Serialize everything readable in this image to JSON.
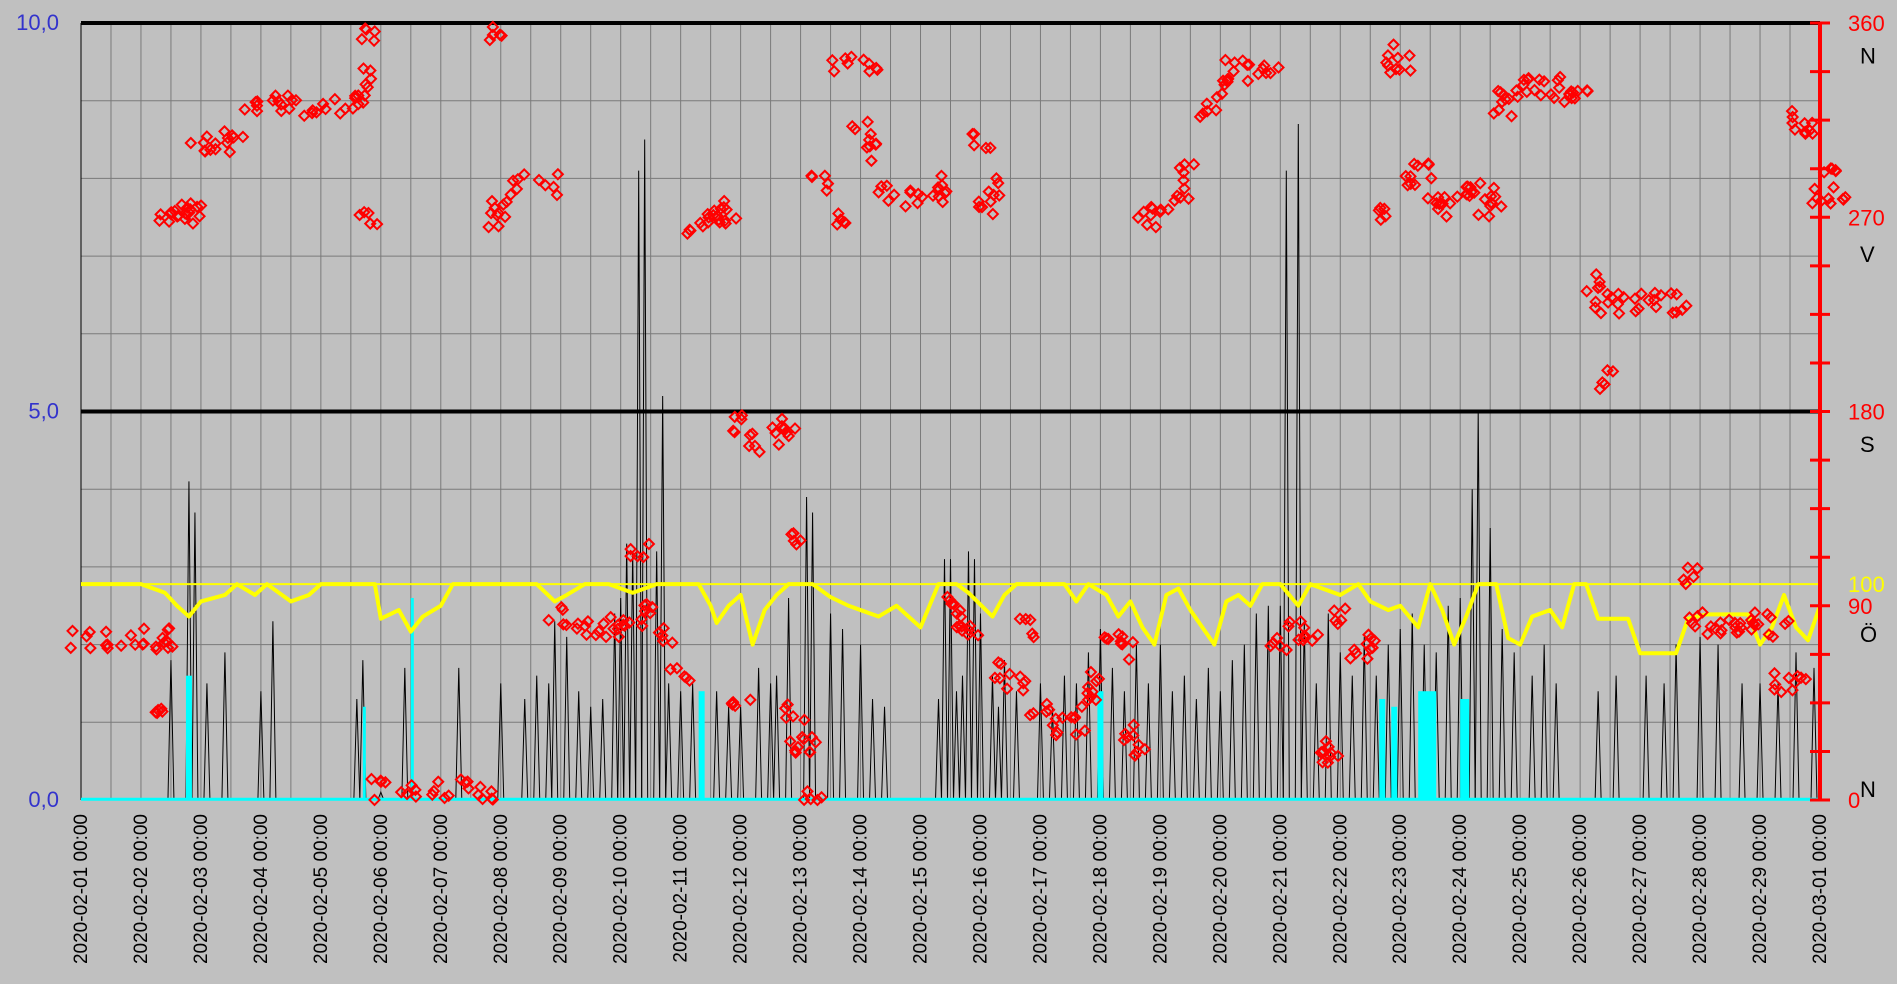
{
  "chart_data": {
    "type": "line",
    "title": "",
    "x": {
      "start": "2020-02-01",
      "end": "2020-03-01",
      "tick_labels": [
        "2020-02-01 00:00",
        "2020-02-02 00:00",
        "2020-02-03 00:00",
        "2020-02-04 00:00",
        "2020-02-05 00:00",
        "2020-02-06 00:00",
        "2020-02-07 00:00",
        "2020-02-08 00:00",
        "2020-02-09 00:00",
        "2020-02-10 00:00",
        "2020-02-11 00:00",
        "2020-02-12 00:00",
        "2020-02-13 00:00",
        "2020-02-14 00:00",
        "2020-02-15 00:00",
        "2020-02-16 00:00",
        "2020-02-17 00:00",
        "2020-02-18 00:00",
        "2020-02-19 00:00",
        "2020-02-20 00:00",
        "2020-02-21 00:00",
        "2020-02-22 00:00",
        "2020-02-23 00:00",
        "2020-02-24 00:00",
        "2020-02-25 00:00",
        "2020-02-26 00:00",
        "2020-02-27 00:00",
        "2020-02-28 00:00",
        "2020-02-29 00:00",
        "2020-03-01 00:00"
      ]
    },
    "y_left": {
      "ylim": [
        0,
        10
      ],
      "tick_labels": [
        "0,0",
        "5,0",
        "10,0"
      ],
      "tick_values": [
        0,
        5,
        10
      ],
      "color": "#3333cc"
    },
    "y_right": {
      "ylim": [
        0,
        360
      ],
      "tick_labels": [
        "0",
        "90",
        "180",
        "270",
        "360"
      ],
      "tick_values": [
        0,
        90,
        180,
        270,
        360
      ],
      "extra_label": {
        "value": 100,
        "text": "100"
      },
      "color": "#ff0000"
    },
    "compass_labels": [
      {
        "text": "N",
        "at": 345
      },
      {
        "text": "V",
        "at": 253
      },
      {
        "text": "S",
        "at": 165
      },
      {
        "text": "Ö",
        "at": 77
      },
      {
        "text": "N",
        "at": 5
      }
    ],
    "grid": true,
    "thick_horizontal_lines_left": [
      5,
      10
    ],
    "reference_line": {
      "value_right": 100,
      "color": "#ffff00"
    },
    "series": [
      {
        "type": "scatter",
        "marker": "diamond",
        "axis": "right",
        "color": "#ff0000",
        "points": [
          [
            0.0,
            75
          ],
          [
            0.5,
            75
          ],
          [
            0.9,
            75
          ],
          [
            1.3,
            75
          ],
          [
            1.35,
            73
          ],
          [
            1.4,
            40
          ],
          [
            1.45,
            272
          ],
          [
            1.6,
            275
          ],
          [
            1.8,
            270
          ],
          [
            1.9,
            275
          ],
          [
            2.0,
            305
          ],
          [
            2.3,
            305
          ],
          [
            2.6,
            305
          ],
          [
            2.8,
            322
          ],
          [
            3.2,
            322
          ],
          [
            3.6,
            322
          ],
          [
            4.0,
            322
          ],
          [
            4.4,
            322
          ],
          [
            4.6,
            325
          ],
          [
            4.7,
            335
          ],
          [
            4.75,
            355
          ],
          [
            4.8,
            270
          ],
          [
            5.0,
            5
          ],
          [
            5.5,
            5
          ],
          [
            6.0,
            5
          ],
          [
            6.5,
            5
          ],
          [
            6.8,
            5
          ],
          [
            6.9,
            355
          ],
          [
            6.95,
            270
          ],
          [
            7.0,
            275
          ],
          [
            7.3,
            285
          ],
          [
            7.8,
            285
          ],
          [
            7.95,
            85
          ],
          [
            8.3,
            80
          ],
          [
            8.7,
            80
          ],
          [
            9.0,
            80
          ],
          [
            9.2,
            80
          ],
          [
            9.3,
            115
          ],
          [
            9.5,
            90
          ],
          [
            9.8,
            75
          ],
          [
            10.0,
            60
          ],
          [
            10.2,
            265
          ],
          [
            10.4,
            270
          ],
          [
            10.6,
            275
          ],
          [
            10.8,
            270
          ],
          [
            11.0,
            45
          ],
          [
            11.05,
            175
          ],
          [
            11.3,
            165
          ],
          [
            11.6,
            168
          ],
          [
            11.75,
            172
          ],
          [
            11.9,
            40
          ],
          [
            11.95,
            120
          ],
          [
            12.0,
            25
          ],
          [
            12.1,
            25
          ],
          [
            12.2,
            0
          ],
          [
            12.3,
            285
          ],
          [
            12.6,
            270
          ],
          [
            12.7,
            340
          ],
          [
            13.0,
            310
          ],
          [
            13.1,
            300
          ],
          [
            13.2,
            340
          ],
          [
            13.4,
            280
          ],
          [
            13.8,
            280
          ],
          [
            14.2,
            280
          ],
          [
            14.4,
            285
          ],
          [
            14.6,
            90
          ],
          [
            14.7,
            85
          ],
          [
            14.8,
            80
          ],
          [
            15.0,
            305
          ],
          [
            15.1,
            275
          ],
          [
            15.2,
            285
          ],
          [
            15.4,
            60
          ],
          [
            15.6,
            55
          ],
          [
            15.8,
            80
          ],
          [
            16.0,
            40
          ],
          [
            16.3,
            35
          ],
          [
            16.6,
            35
          ],
          [
            16.8,
            45
          ],
          [
            16.9,
            55
          ],
          [
            17.2,
            75
          ],
          [
            17.4,
            70
          ],
          [
            17.5,
            30
          ],
          [
            17.6,
            25
          ],
          [
            17.8,
            270
          ],
          [
            18.0,
            275
          ],
          [
            18.3,
            280
          ],
          [
            18.5,
            290
          ],
          [
            18.8,
            320
          ],
          [
            19.0,
            330
          ],
          [
            19.2,
            338
          ],
          [
            19.5,
            338
          ],
          [
            19.8,
            338
          ],
          [
            20.0,
            72
          ],
          [
            20.3,
            78
          ],
          [
            20.5,
            75
          ],
          [
            20.7,
            25
          ],
          [
            20.8,
            22
          ],
          [
            21.0,
            85
          ],
          [
            21.3,
            70
          ],
          [
            21.5,
            75
          ],
          [
            21.6,
            270
          ],
          [
            21.8,
            345
          ],
          [
            22.0,
            340
          ],
          [
            22.2,
            285
          ],
          [
            22.4,
            290
          ],
          [
            22.6,
            275
          ],
          [
            22.8,
            275
          ],
          [
            23.0,
            280
          ],
          [
            23.2,
            285
          ],
          [
            23.4,
            275
          ],
          [
            23.6,
            280
          ],
          [
            23.7,
            320
          ],
          [
            23.8,
            325
          ],
          [
            24.0,
            330
          ],
          [
            24.3,
            330
          ],
          [
            24.6,
            330
          ],
          [
            24.8,
            325
          ],
          [
            25.0,
            325
          ],
          [
            25.2,
            240
          ],
          [
            25.3,
            230
          ],
          [
            25.4,
            195
          ],
          [
            25.6,
            230
          ],
          [
            26.0,
            230
          ],
          [
            26.4,
            230
          ],
          [
            26.7,
            230
          ],
          [
            26.8,
            105
          ],
          [
            26.9,
            85
          ],
          [
            27.2,
            80
          ],
          [
            27.5,
            80
          ],
          [
            27.8,
            80
          ],
          [
            28.0,
            82
          ],
          [
            28.3,
            80
          ],
          [
            28.4,
            55
          ],
          [
            28.6,
            55
          ],
          [
            28.7,
            315
          ],
          [
            28.8,
            310
          ],
          [
            29.0,
            280
          ],
          [
            29.2,
            290
          ],
          [
            29.3,
            280
          ]
        ]
      },
      {
        "type": "line",
        "axis": "left",
        "color": "#000000",
        "name": ""
      },
      {
        "type": "area",
        "axis": "left",
        "color": "#00ffff",
        "name": ""
      },
      {
        "type": "line",
        "axis": "right",
        "color": "#ffff00",
        "name": ""
      }
    ]
  }
}
